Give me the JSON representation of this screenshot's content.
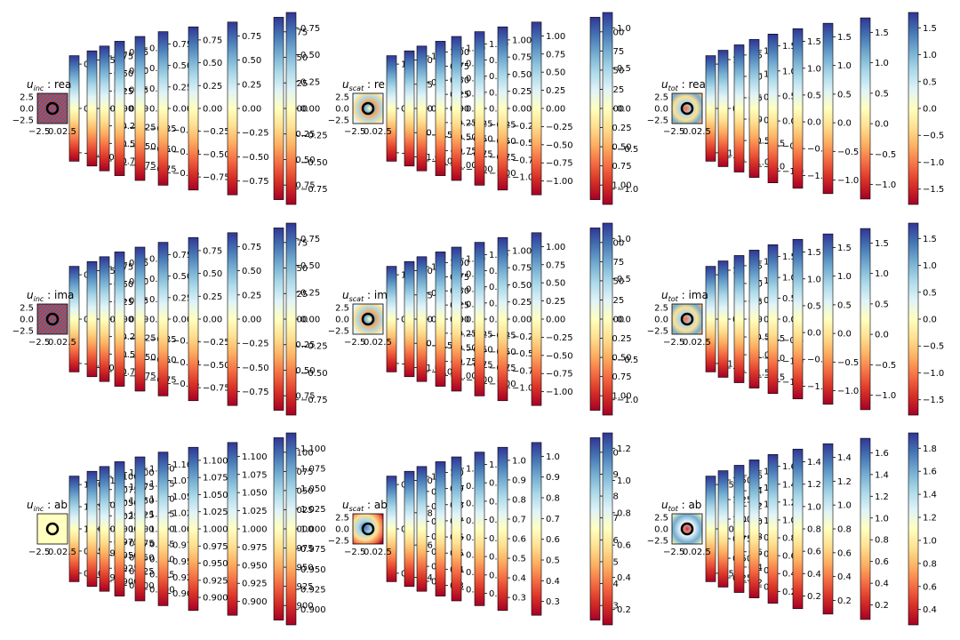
{
  "colors": {
    "ramp": [
      "#a50026",
      "#d73027",
      "#f46d43",
      "#fdae61",
      "#fee090",
      "#ffffbf",
      "#e0f3f8",
      "#abd9e9",
      "#74add1",
      "#4575b4",
      "#313695"
    ]
  },
  "chart_data": [
    {
      "type": "heatmap",
      "row": 0,
      "col": 0,
      "title_parts": {
        "main": "u",
        "sub": "inc",
        "rest": " : rea"
      },
      "thumb_style": "stripes-diag",
      "xticks": [
        "−2.5",
        "0.02.5"
      ],
      "yticks": [
        "2.5",
        "0.0",
        "−2.5"
      ],
      "colorbars": [
        {
          "ticks": [
            "0.5",
            "0.0",
            "−0.5"
          ]
        },
        {
          "ticks": [
            "0.5",
            "0.0",
            "−0.5"
          ]
        },
        {
          "ticks": [
            "0.75",
            "0.50",
            "0.25",
            "0.00",
            "−0.25",
            "−0.50",
            "−0.75"
          ]
        },
        {
          "ticks": [
            "0.75",
            "0.50",
            "0.25",
            "0.00",
            "−0.25",
            "−0.50",
            "−0.75"
          ]
        },
        {
          "ticks": [
            "0.75",
            "0.50",
            "0.25",
            "0.00",
            "−0.25",
            "−0.50",
            "−0.75"
          ]
        },
        {
          "ticks": [
            "0.75",
            "0.50",
            "0.25",
            "0.00",
            "−0.25",
            "−0.50",
            "−0.75"
          ]
        },
        {
          "ticks": [
            "0.75",
            "0.50",
            "0.25",
            "0.00",
            "−0.25",
            "−0.50",
            "−0.75"
          ]
        },
        {
          "ticks": [
            "0.75",
            "0.50",
            "0.25",
            "0.00",
            "−0.25",
            "−0.50",
            "−0.75"
          ]
        },
        {
          "ticks": [
            "0.75",
            "0.50",
            "0.25",
            "0.00",
            "−0.25",
            "−0.50",
            "−0.75"
          ]
        },
        {
          "ticks": [
            "0.75",
            "0.50",
            "0.25",
            "0.00",
            "−0.25",
            "−0.50",
            "−0.75"
          ]
        }
      ]
    },
    {
      "type": "heatmap",
      "row": 0,
      "col": 1,
      "title_parts": {
        "main": "u",
        "sub": "scat",
        "rest": " : re"
      },
      "thumb_style": "ripple",
      "xticks": [
        "−2.5",
        "0.02.5"
      ],
      "yticks": [
        "2.5",
        "0.0",
        "−2.5"
      ],
      "colorbars": [
        {
          "ticks": [
            "1",
            "0",
            "−1"
          ]
        },
        {
          "ticks": [
            "1.0",
            "0.5",
            "0.0",
            "−0.5",
            "−1.0"
          ]
        },
        {
          "ticks": [
            "1.0",
            "0.5",
            "0.0",
            "−0.5",
            "−1.0"
          ]
        },
        {
          "ticks": [
            "1.00",
            "0.75",
            "0.50",
            "0.25",
            "0.00",
            "−0.25",
            "−0.50",
            "−0.75",
            "−1.00"
          ]
        },
        {
          "ticks": [
            "1.00",
            "0.75",
            "0.50",
            "0.25",
            "0.00",
            "−0.25",
            "−0.50",
            "−0.75",
            "−1.00"
          ]
        },
        {
          "ticks": [
            "1.00",
            "0.75",
            "0.50",
            "0.25",
            "0.00",
            "−0.25",
            "−0.50",
            "−0.75",
            "−1.00"
          ]
        },
        {
          "ticks": [
            "1.00",
            "0.75",
            "0.50",
            "0.25",
            "0.00",
            "−0.25",
            "−0.50",
            "−0.75",
            "−1.00"
          ]
        },
        {
          "ticks": [
            "1.00",
            "0.75",
            "0.50",
            "0.25",
            "0.00",
            "−0.25",
            "−0.50",
            "−0.75",
            "−1.00"
          ]
        },
        {
          "ticks": [
            "1.00",
            "0.75",
            "0.50",
            "0.25",
            "0.00",
            "−0.25",
            "−0.50",
            "−0.75",
            "−1.00"
          ]
        },
        {
          "ticks": [
            "1.0",
            "0.5",
            "0.0",
            "−0.5",
            "−1.0"
          ]
        }
      ]
    },
    {
      "type": "heatmap",
      "row": 0,
      "col": 2,
      "title_parts": {
        "main": "u",
        "sub": "tot",
        "rest": " : rea"
      },
      "thumb_style": "mixed",
      "xticks": [
        "−2.5",
        "0.02.5"
      ],
      "yticks": [
        "2.5",
        "0.0",
        "−2.5"
      ],
      "colorbars": [
        {
          "ticks": [
            "1",
            "0",
            "−1"
          ]
        },
        {
          "ticks": [
            "1",
            "0",
            "−1"
          ]
        },
        {
          "ticks": [
            "1.5",
            "1.0",
            "0.5",
            "0.0",
            "−0.5",
            "−1.0"
          ]
        },
        {
          "ticks": [
            "1.5",
            "1.0",
            "0.5",
            "0.0",
            "−0.5",
            "−1.0"
          ]
        },
        {
          "ticks": [
            "1.5",
            "1.0",
            "0.5",
            "0.0",
            "−0.5",
            "−1.0"
          ]
        },
        {
          "ticks": [
            "1.5",
            "1.0",
            "0.5",
            "0.0",
            "−0.5",
            "−1.0"
          ]
        },
        {
          "ticks": [
            "1.5",
            "1.0",
            "0.5",
            "0.0",
            "−0.5",
            "−1.0"
          ]
        },
        {
          "ticks": [
            "1.5",
            "1.0",
            "0.5",
            "0.0",
            "−0.5",
            "−1.0"
          ]
        },
        {
          "ticks": [
            "1.5",
            "1.0",
            "0.5",
            "0.0",
            "−0.5",
            "−1.0",
            "−1.5"
          ]
        }
      ]
    },
    {
      "type": "heatmap",
      "row": 1,
      "col": 0,
      "title_parts": {
        "main": "u",
        "sub": "inc",
        "rest": " : ima"
      },
      "thumb_style": "stripes-diag",
      "xticks": [
        "−2.5",
        "0.02.5"
      ],
      "yticks": [
        "2.5",
        "0.0",
        "−2.5"
      ],
      "colorbars": [
        {
          "ticks": [
            "0.5",
            "0.0",
            "−0.5"
          ]
        },
        {
          "ticks": [
            "0.5",
            "0.0",
            "−0.5"
          ]
        },
        {
          "ticks": [
            "0.75",
            "0.50",
            "0.25",
            "0.00",
            "−0.25",
            "−0.50",
            "−0.75"
          ]
        },
        {
          "ticks": [
            "0.75",
            "0.50",
            "0.25",
            "0.00",
            "−0.25",
            "−0.50",
            "−0.75"
          ]
        },
        {
          "ticks": [
            "0.75",
            "0.50",
            "0.25",
            "0.00",
            "−0.25",
            "−0.50",
            "−0.75"
          ]
        },
        {
          "ticks": [
            "0.75",
            "0.50",
            "0.25",
            "0.00",
            "−0.25",
            "−0.50",
            "−0.75"
          ]
        },
        {
          "ticks": [
            "0.75",
            "0.50",
            "0.25",
            "0.00",
            "−0.25",
            "−0.50",
            "−0.75"
          ]
        },
        {
          "ticks": [
            "0.75",
            "0.50",
            "0.25",
            "0.00",
            "−0.25",
            "−0.50",
            "−0.75"
          ]
        },
        {
          "ticks": [
            "0.75",
            "0.50",
            "0.25",
            "0.00",
            "−0.25",
            "−0.50",
            "−0.75"
          ]
        },
        {
          "ticks": [
            "0.75",
            "0.50",
            "0.25",
            "0.00",
            "−0.25",
            "−0.50",
            "−0.75"
          ]
        }
      ]
    },
    {
      "type": "heatmap",
      "row": 1,
      "col": 1,
      "title_parts": {
        "main": "u",
        "sub": "scat",
        "rest": " : im"
      },
      "thumb_style": "ripple",
      "xticks": [
        "−2.5",
        "0.02.5"
      ],
      "yticks": [
        "2.5",
        "0.0",
        "−2.5"
      ],
      "colorbars": [
        {
          "ticks": [
            "1",
            "0",
            "−1"
          ]
        },
        {
          "ticks": [
            "1.0",
            "0.5",
            "0.0",
            "−0.5",
            "−1.0"
          ]
        },
        {
          "ticks": [
            "1.0",
            "0.5",
            "0.0",
            "−0.5",
            "−1.0"
          ]
        },
        {
          "ticks": [
            "1.00",
            "0.75",
            "0.50",
            "0.25",
            "0.00",
            "−0.25",
            "−0.50",
            "−0.75",
            "−1.00"
          ]
        },
        {
          "ticks": [
            "1.00",
            "0.75",
            "0.50",
            "0.25",
            "0.00",
            "−0.25",
            "−0.50",
            "−0.75",
            "−1.00"
          ]
        },
        {
          "ticks": [
            "1.00",
            "0.75",
            "0.50",
            "0.25",
            "0.00",
            "−0.25",
            "−0.50",
            "−0.75",
            "−1.00"
          ]
        },
        {
          "ticks": [
            "1.00",
            "0.75",
            "0.50",
            "0.25",
            "0.00",
            "−0.25",
            "−0.50",
            "−0.75",
            "−1.00"
          ]
        },
        {
          "ticks": [
            "1.00",
            "0.75",
            "0.50",
            "0.25",
            "0.00",
            "−0.25",
            "−0.50",
            "−0.75",
            "−1.00"
          ]
        },
        {
          "ticks": [
            "1.00",
            "0.75",
            "0.50",
            "0.25",
            "0.00",
            "−0.25",
            "−0.50",
            "−0.75",
            "−1.00"
          ]
        },
        {
          "ticks": [
            "1.0",
            "0.5",
            "0.0",
            "−0.5",
            "−1.0"
          ]
        }
      ]
    },
    {
      "type": "heatmap",
      "row": 1,
      "col": 2,
      "title_parts": {
        "main": "u",
        "sub": "tot",
        "rest": " : ima"
      },
      "thumb_style": "mixed",
      "xticks": [
        "−2.5",
        "0.02.5"
      ],
      "yticks": [
        "2.5",
        "0.0",
        "−2.5"
      ],
      "colorbars": [
        {
          "ticks": [
            "1",
            "0",
            "−1"
          ]
        },
        {
          "ticks": [
            "1",
            "0",
            "−1"
          ]
        },
        {
          "ticks": [
            "1.5",
            "1.0",
            "0.5",
            "0.0",
            "−0.5",
            "−1.0",
            "−1.5"
          ]
        },
        {
          "ticks": [
            "1.5",
            "1.0",
            "0.5",
            "0.0",
            "−0.5",
            "−1.0",
            "−1.5"
          ]
        },
        {
          "ticks": [
            "1.5",
            "1.0",
            "0.5",
            "0.0",
            "−0.5",
            "−1.0",
            "−1.5"
          ]
        },
        {
          "ticks": [
            "1.5",
            "1.0",
            "0.5",
            "0.0",
            "−0.5",
            "−1.0"
          ]
        },
        {
          "ticks": [
            "1.5",
            "1.0",
            "0.5",
            "0.0",
            "−0.5",
            "−1.0"
          ]
        },
        {
          "ticks": [
            "1.5",
            "1.0",
            "0.5",
            "0.0",
            "−0.5",
            "−1.0"
          ]
        },
        {
          "ticks": [
            "1.5",
            "1.0",
            "0.5",
            "0.0",
            "−0.5",
            "−1.0",
            "−1.5"
          ]
        }
      ]
    },
    {
      "type": "heatmap",
      "row": 2,
      "col": 0,
      "title_parts": {
        "main": "u",
        "sub": "inc",
        "rest": " : ab"
      },
      "thumb_style": "flat",
      "xticks": [
        "−2.5",
        "0.02.5"
      ],
      "yticks": [],
      "colorbars": [
        {
          "ticks": [
            "1.10",
            "1.05",
            "1.00",
            "0.95",
            "0.90"
          ]
        },
        {
          "ticks": [
            "1.10",
            "1.05",
            "1.00",
            "0.95",
            "0.90"
          ]
        },
        {
          "ticks": [
            "1.100",
            "1.075",
            "1.050",
            "1.025",
            "1.000",
            "0.975",
            "0.950",
            "0.925",
            "0.900"
          ]
        },
        {
          "ticks": [
            "1.100",
            "1.075",
            "1.050",
            "1.025",
            "1.000",
            "0.975",
            "0.950",
            "0.925",
            "0.900"
          ]
        },
        {
          "ticks": [
            "1.100",
            "1.075",
            "1.050",
            "1.025",
            "1.000",
            "0.975",
            "0.950",
            "0.925",
            "0.900"
          ]
        },
        {
          "ticks": [
            "1.100",
            "1.075",
            "1.050",
            "1.025",
            "1.000",
            "0.975",
            "0.950",
            "0.925",
            "0.900"
          ]
        },
        {
          "ticks": [
            "1.100",
            "1.075",
            "1.050",
            "1.025",
            "1.000",
            "0.975",
            "0.950",
            "0.925",
            "0.900"
          ]
        },
        {
          "ticks": [
            "1.100",
            "1.075",
            "1.050",
            "1.025",
            "1.000",
            "0.975",
            "0.950",
            "0.925",
            "0.900"
          ]
        },
        {
          "ticks": [
            "1.100",
            "1.075",
            "1.050",
            "1.025",
            "1.000",
            "0.975",
            "0.950",
            "0.925",
            "0.900"
          ]
        },
        {
          "ticks": [
            "1.100",
            "1.075",
            "1.050",
            "1.025",
            "1.000",
            "0.975",
            "0.950",
            "0.925",
            "0.900"
          ]
        }
      ]
    },
    {
      "type": "heatmap",
      "row": 2,
      "col": 1,
      "title_parts": {
        "main": "u",
        "sub": "scat",
        "rest": " : ab"
      },
      "thumb_style": "abs-scat",
      "xticks": [
        "−2.5",
        "0.02.5"
      ],
      "yticks": [
        "2.5",
        "0.0",
        "−2.5"
      ],
      "colorbars": [
        {
          "ticks": [
            "0.8",
            "0.6",
            "0.4"
          ]
        },
        {
          "ticks": [
            "1.0",
            "0.8",
            "0.6",
            "0.4"
          ]
        },
        {
          "ticks": [
            "1.0",
            "0.9",
            "0.8",
            "0.7",
            "0.6",
            "0.5",
            "0.4",
            "0.3"
          ]
        },
        {
          "ticks": [
            "1.0",
            "0.9",
            "0.8",
            "0.7",
            "0.6",
            "0.5",
            "0.4",
            "0.3"
          ]
        },
        {
          "ticks": [
            "1.0",
            "0.9",
            "0.8",
            "0.7",
            "0.6",
            "0.5",
            "0.4",
            "0.3"
          ]
        },
        {
          "ticks": [
            "1.0",
            "0.9",
            "0.8",
            "0.7",
            "0.6",
            "0.5",
            "0.4",
            "0.3"
          ]
        },
        {
          "ticks": [
            "1.0",
            "0.9",
            "0.8",
            "0.7",
            "0.6",
            "0.5",
            "0.4",
            "0.3"
          ]
        },
        {
          "ticks": [
            "1.0",
            "0.9",
            "0.8",
            "0.7",
            "0.6",
            "0.5",
            "0.4",
            "0.3"
          ]
        },
        {
          "ticks": [
            "1.0",
            "0.9",
            "0.8",
            "0.7",
            "0.6",
            "0.5",
            "0.4",
            "0.3"
          ]
        },
        {
          "ticks": [
            "1.2",
            "1.0",
            "0.8",
            "0.6",
            "0.4",
            "0.2"
          ]
        }
      ]
    },
    {
      "type": "heatmap",
      "row": 2,
      "col": 2,
      "title_parts": {
        "main": "u",
        "sub": "tot",
        "rest": " : ab"
      },
      "thumb_style": "abs-tot",
      "xticks": [
        "−2.5",
        "0.02.5"
      ],
      "yticks": [
        "2.5",
        "0.0",
        "−2.5"
      ],
      "colorbars": [
        {
          "ticks": [
            "1.5",
            "1.0",
            "0.5"
          ]
        },
        {
          "ticks": [
            "1.50",
            "1.25",
            "1.00",
            "0.75",
            "0.50",
            "0.25"
          ]
        },
        {
          "ticks": [
            "1.6",
            "1.4",
            "1.2",
            "1.0",
            "0.8",
            "0.6",
            "0.4",
            "0.2"
          ]
        },
        {
          "ticks": [
            "1.6",
            "1.4",
            "1.2",
            "1.0",
            "0.8",
            "0.6",
            "0.4",
            "0.2"
          ]
        },
        {
          "ticks": [
            "1.6",
            "1.4",
            "1.2",
            "1.0",
            "0.8",
            "0.6",
            "0.4",
            "0.2"
          ]
        },
        {
          "ticks": [
            "1.4",
            "1.2",
            "1.0",
            "0.8",
            "0.6",
            "0.4",
            "0.2"
          ]
        },
        {
          "ticks": [
            "1.4",
            "1.2",
            "1.0",
            "0.8",
            "0.6",
            "0.4",
            "0.2"
          ]
        },
        {
          "ticks": [
            "1.6",
            "1.4",
            "1.2",
            "1.0",
            "0.8",
            "0.6",
            "0.4",
            "0.2"
          ]
        },
        {
          "ticks": [
            "1.8",
            "1.6",
            "1.4",
            "1.2",
            "1.0",
            "0.8",
            "0.6",
            "0.4"
          ]
        }
      ]
    }
  ]
}
